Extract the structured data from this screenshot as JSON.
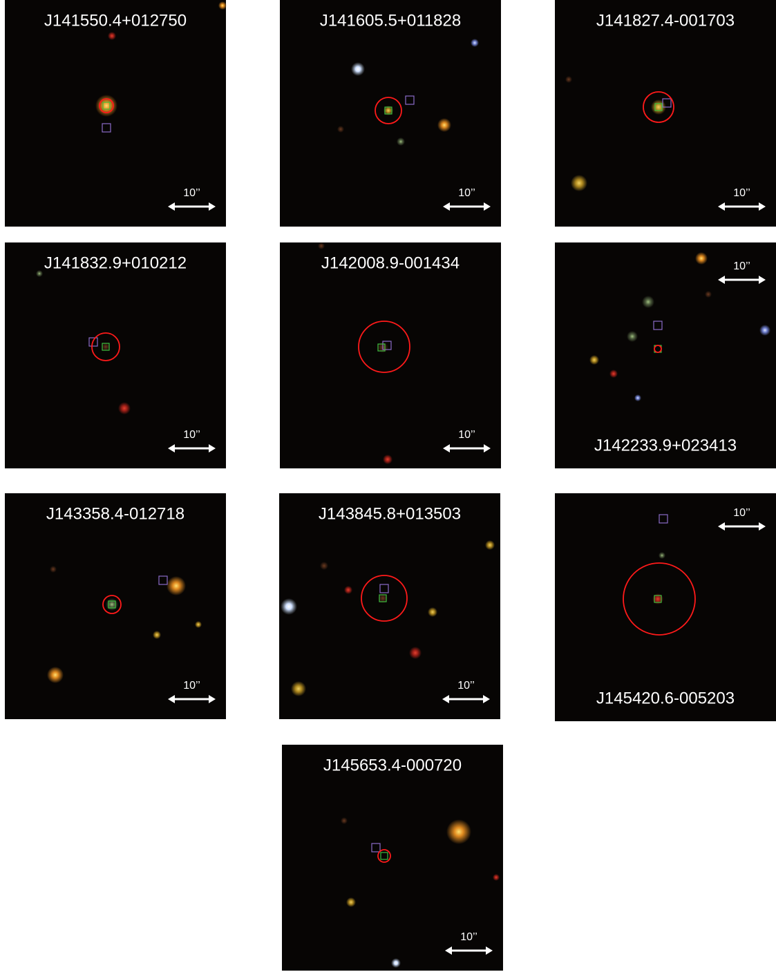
{
  "panels": [
    {
      "name": "J141550.4+012750",
      "scale": "10’’"
    },
    {
      "name": "J141605.5+011828",
      "scale": "10’’"
    },
    {
      "name": "J141827.4-001703",
      "scale": "10’’"
    },
    {
      "name": "J141832.9+010212",
      "scale": "10’’"
    },
    {
      "name": "J142008.9-001434",
      "scale": "10’’"
    },
    {
      "name": "J142233.9+023413",
      "scale": "10’’"
    },
    {
      "name": "J143358.4-012718",
      "scale": "10’’"
    },
    {
      "name": "J143845.8+013503",
      "scale": "10’’"
    },
    {
      "name": "J145420.6-005203",
      "scale": "10’’"
    },
    {
      "name": "J145653.4-000720",
      "scale": "10’’"
    }
  ]
}
